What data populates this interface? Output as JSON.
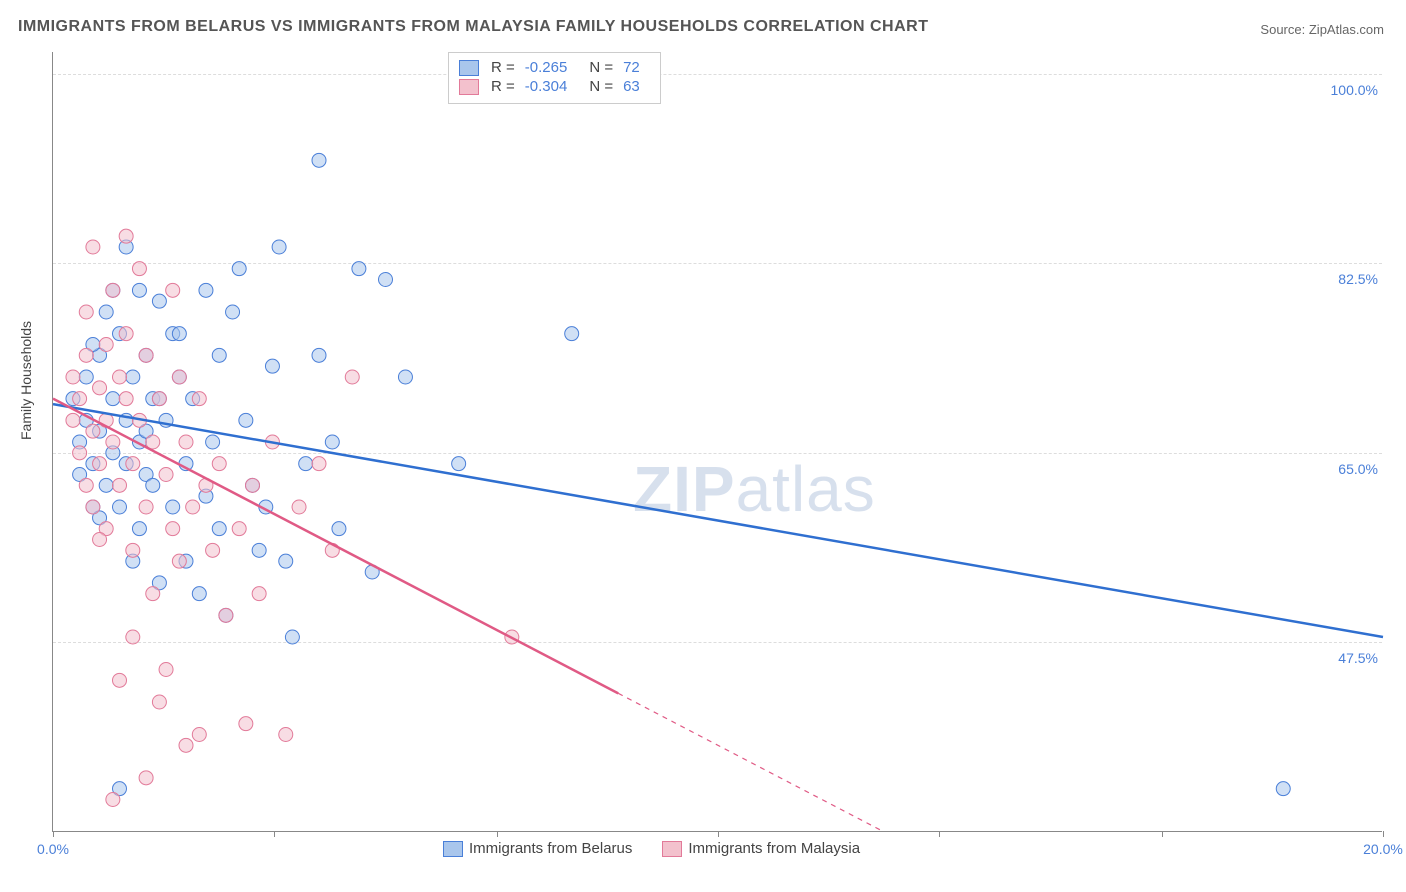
{
  "title": "IMMIGRANTS FROM BELARUS VS IMMIGRANTS FROM MALAYSIA FAMILY HOUSEHOLDS CORRELATION CHART",
  "source_label": "Source:",
  "source_name": "ZipAtlas.com",
  "watermark_a": "ZIP",
  "watermark_b": "atlas",
  "ylabel": "Family Households",
  "chart": {
    "type": "scatter",
    "background_color": "#ffffff",
    "grid_color": "#dddddd",
    "axis_color": "#888888",
    "xlim": [
      0.0,
      20.0
    ],
    "ylim": [
      30.0,
      102.0
    ],
    "xticks": [
      {
        "pos": 0.0,
        "label": "0.0%"
      },
      {
        "pos": 20.0,
        "label": "20.0%"
      }
    ],
    "xtick_marks": [
      0.0,
      3.33,
      6.67,
      10.0,
      13.33,
      16.67,
      20.0
    ],
    "yticks": [
      {
        "pos": 47.5,
        "label": "47.5%"
      },
      {
        "pos": 65.0,
        "label": "65.0%"
      },
      {
        "pos": 82.5,
        "label": "82.5%"
      },
      {
        "pos": 100.0,
        "label": "100.0%"
      }
    ],
    "marker_radius": 7,
    "marker_opacity": 0.55,
    "series": [
      {
        "name": "Immigrants from Belarus",
        "fill": "#a9c6ec",
        "stroke": "#4a7fd8",
        "line_color": "#2f6fd0",
        "line_width": 2.5,
        "R": "-0.265",
        "N": "72",
        "trend": {
          "x1": 0.0,
          "y1": 69.5,
          "x2": 20.0,
          "y2": 48.0,
          "solid_until_x": 20.0
        },
        "points": [
          [
            0.3,
            70
          ],
          [
            0.4,
            66
          ],
          [
            0.4,
            63
          ],
          [
            0.5,
            68
          ],
          [
            0.5,
            72
          ],
          [
            0.6,
            60
          ],
          [
            0.6,
            64
          ],
          [
            0.7,
            74
          ],
          [
            0.7,
            67
          ],
          [
            0.8,
            62
          ],
          [
            0.8,
            78
          ],
          [
            0.9,
            70
          ],
          [
            0.9,
            65
          ],
          [
            1.0,
            76
          ],
          [
            1.0,
            60
          ],
          [
            1.1,
            84
          ],
          [
            1.1,
            68
          ],
          [
            1.2,
            72
          ],
          [
            1.2,
            55
          ],
          [
            1.3,
            66
          ],
          [
            1.3,
            80
          ],
          [
            1.4,
            63
          ],
          [
            1.4,
            74
          ],
          [
            1.5,
            70
          ],
          [
            1.5,
            62
          ],
          [
            1.6,
            79
          ],
          [
            1.6,
            53
          ],
          [
            1.7,
            68
          ],
          [
            1.8,
            76
          ],
          [
            1.8,
            60
          ],
          [
            1.9,
            72
          ],
          [
            2.0,
            64
          ],
          [
            2.0,
            55
          ],
          [
            2.1,
            70
          ],
          [
            2.2,
            52
          ],
          [
            2.3,
            80
          ],
          [
            2.4,
            66
          ],
          [
            2.5,
            74
          ],
          [
            2.5,
            58
          ],
          [
            2.6,
            50
          ],
          [
            2.8,
            82
          ],
          [
            2.9,
            68
          ],
          [
            3.0,
            62
          ],
          [
            3.1,
            56
          ],
          [
            3.2,
            60
          ],
          [
            3.3,
            73
          ],
          [
            3.5,
            55
          ],
          [
            3.6,
            48
          ],
          [
            3.8,
            64
          ],
          [
            4.0,
            74
          ],
          [
            4.0,
            92
          ],
          [
            4.2,
            66
          ],
          [
            4.3,
            58
          ],
          [
            4.6,
            82
          ],
          [
            4.8,
            54
          ],
          [
            5.0,
            81
          ],
          [
            5.3,
            72
          ],
          [
            6.1,
            64
          ],
          [
            7.8,
            76
          ],
          [
            18.5,
            34
          ],
          [
            0.6,
            75
          ],
          [
            0.7,
            59
          ],
          [
            0.9,
            80
          ],
          [
            1.1,
            64
          ],
          [
            1.3,
            58
          ],
          [
            1.6,
            70
          ],
          [
            1.9,
            76
          ],
          [
            2.3,
            61
          ],
          [
            2.7,
            78
          ],
          [
            3.4,
            84
          ],
          [
            1.0,
            34
          ],
          [
            1.4,
            67
          ]
        ]
      },
      {
        "name": "Immigrants from Malaysia",
        "fill": "#f3c1cd",
        "stroke": "#e27a99",
        "line_color": "#e05a85",
        "line_width": 2.5,
        "R": "-0.304",
        "N": "63",
        "trend": {
          "x1": 0.0,
          "y1": 70.0,
          "x2": 12.5,
          "y2": 30.0,
          "solid_until_x": 8.5
        },
        "points": [
          [
            0.3,
            68
          ],
          [
            0.3,
            72
          ],
          [
            0.4,
            65
          ],
          [
            0.4,
            70
          ],
          [
            0.5,
            74
          ],
          [
            0.5,
            62
          ],
          [
            0.5,
            78
          ],
          [
            0.6,
            67
          ],
          [
            0.6,
            60
          ],
          [
            0.7,
            71
          ],
          [
            0.7,
            64
          ],
          [
            0.8,
            75
          ],
          [
            0.8,
            68
          ],
          [
            0.8,
            58
          ],
          [
            0.9,
            80
          ],
          [
            0.9,
            66
          ],
          [
            1.0,
            72
          ],
          [
            1.0,
            62
          ],
          [
            1.1,
            70
          ],
          [
            1.1,
            76
          ],
          [
            1.1,
            85
          ],
          [
            1.2,
            64
          ],
          [
            1.2,
            56
          ],
          [
            1.3,
            68
          ],
          [
            1.3,
            82
          ],
          [
            1.4,
            60
          ],
          [
            1.4,
            74
          ],
          [
            1.5,
            66
          ],
          [
            1.5,
            52
          ],
          [
            1.6,
            70
          ],
          [
            1.7,
            63
          ],
          [
            1.7,
            45
          ],
          [
            1.8,
            58
          ],
          [
            1.9,
            72
          ],
          [
            1.9,
            55
          ],
          [
            2.0,
            38
          ],
          [
            2.0,
            66
          ],
          [
            2.1,
            60
          ],
          [
            2.2,
            39
          ],
          [
            2.3,
            62
          ],
          [
            2.4,
            56
          ],
          [
            2.5,
            64
          ],
          [
            2.6,
            50
          ],
          [
            2.8,
            58
          ],
          [
            2.9,
            40
          ],
          [
            3.0,
            62
          ],
          [
            3.1,
            52
          ],
          [
            3.3,
            66
          ],
          [
            3.5,
            39
          ],
          [
            3.7,
            60
          ],
          [
            4.0,
            64
          ],
          [
            4.2,
            56
          ],
          [
            4.5,
            72
          ],
          [
            6.9,
            48
          ],
          [
            1.0,
            44
          ],
          [
            1.2,
            48
          ],
          [
            1.6,
            42
          ],
          [
            0.6,
            84
          ],
          [
            0.9,
            33
          ],
          [
            1.4,
            35
          ],
          [
            1.8,
            80
          ],
          [
            2.2,
            70
          ],
          [
            0.7,
            57
          ]
        ]
      }
    ]
  }
}
